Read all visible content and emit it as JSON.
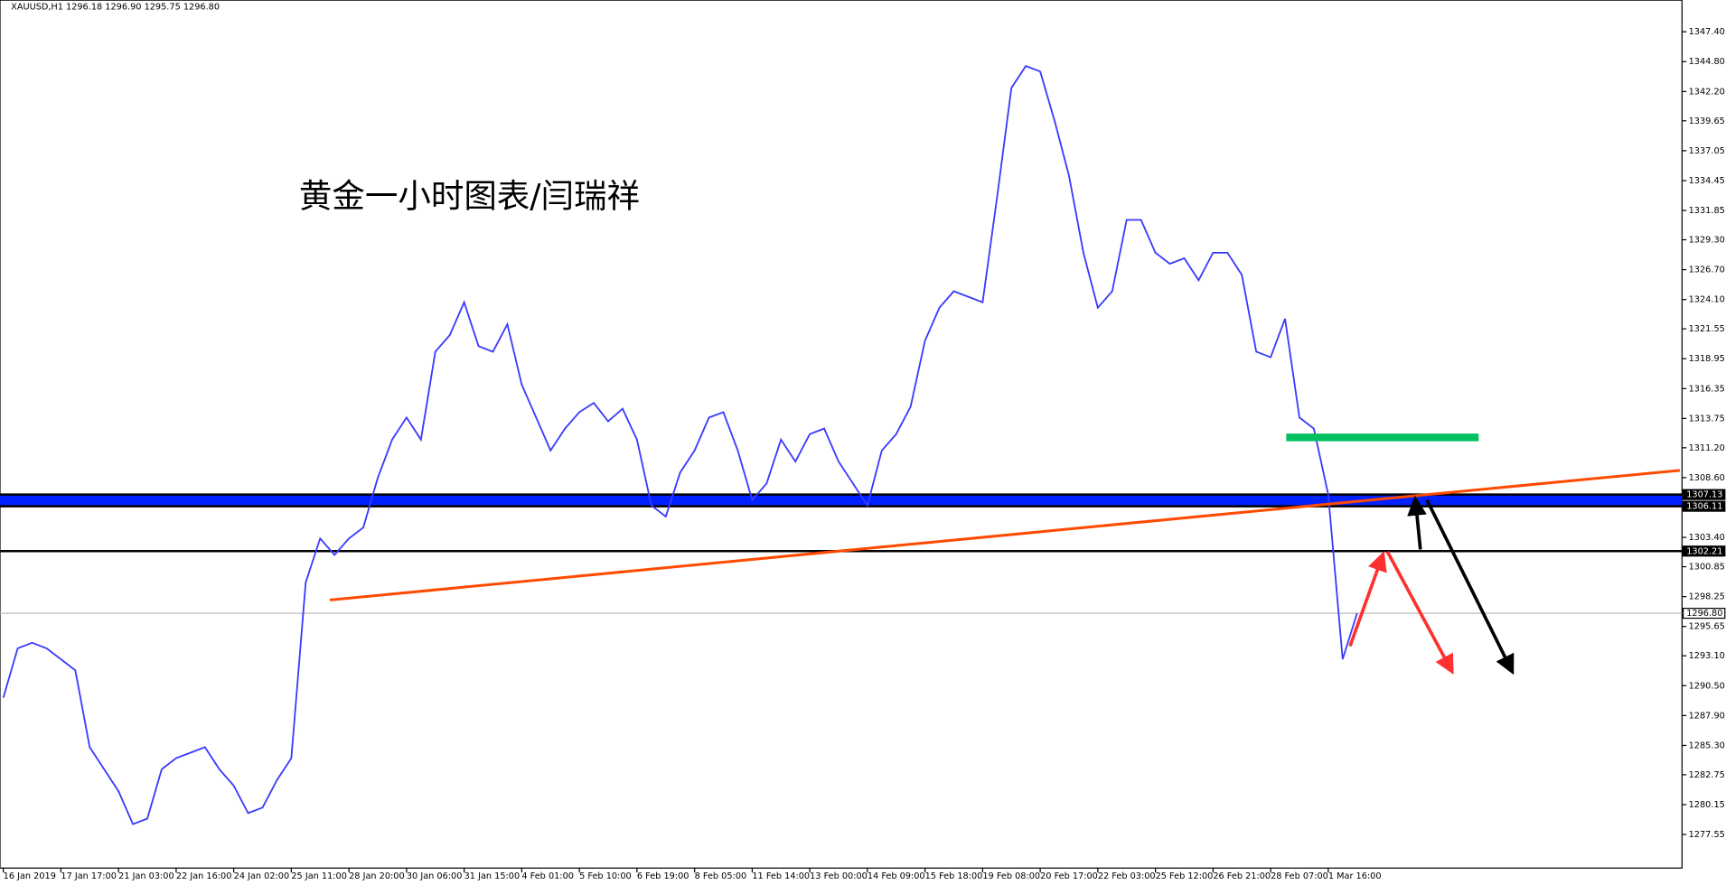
{
  "chart_data": {
    "type": "line",
    "subtitle": "XAUUSD,H1  1296.18 1296.90 1295.75 1296.80",
    "title": "黄金一小时图表/闫瑞祥",
    "categories": [
      "16 Jan 2019",
      null,
      null,
      null,
      "17 Jan 17:00",
      null,
      null,
      null,
      "21 Jan 03:00",
      null,
      null,
      null,
      "22 Jan 16:00",
      null,
      null,
      null,
      "24 Jan 02:00",
      null,
      null,
      null,
      "25 Jan 11:00",
      null,
      null,
      null,
      "28 Jan 20:00",
      null,
      null,
      null,
      "30 Jan 06:00",
      null,
      null,
      null,
      "31 Jan 15:00",
      null,
      null,
      null,
      "4 Feb 01:00",
      null,
      null,
      null,
      "5 Feb 10:00",
      null,
      null,
      null,
      "6 Feb 19:00",
      null,
      null,
      null,
      "8 Feb 05:00",
      null,
      null,
      null,
      "11 Feb 14:00",
      null,
      null,
      null,
      "13 Feb 00:00",
      null,
      null,
      null,
      "14 Feb 09:00",
      null,
      null,
      null,
      "15 Feb 18:00",
      null,
      null,
      null,
      "19 Feb 08:00",
      null,
      null,
      null,
      "20 Feb 17:00",
      null,
      null,
      null,
      "22 Feb 03:00",
      null,
      null,
      null,
      "25 Feb 12:00",
      null,
      null,
      null,
      "26 Feb 21:00",
      null,
      null,
      null,
      "28 Feb 07:00",
      null,
      null,
      null,
      "1 Mar 16:00",
      null,
      null
    ],
    "series": [
      {
        "color": "#3a3aff",
        "values": [
          1289.45,
          1293.75,
          1294.23,
          1293.75,
          1292.8,
          1291.84,
          1285.15,
          1283.23,
          1281.32,
          1278.45,
          1278.93,
          1283.23,
          1284.19,
          1284.67,
          1285.15,
          1283.23,
          1281.8,
          1279.41,
          1279.89,
          1282.28,
          1284.19,
          1299.49,
          1303.31,
          1301.88,
          1303.31,
          1304.27,
          1308.57,
          1311.91,
          1313.83,
          1311.91,
          1319.56,
          1321.0,
          1323.86,
          1320.04,
          1319.56,
          1321.95,
          1316.69,
          1313.83,
          1310.96,
          1312.87,
          1314.3,
          1315.1,
          1313.5,
          1314.6,
          1311.91,
          1306.18,
          1305.22,
          1309.05,
          1310.96,
          1313.83,
          1314.3,
          1310.96,
          1306.66,
          1308.09,
          1311.91,
          1310.0,
          1312.39,
          1312.87,
          1310.0,
          1308.09,
          1306.18,
          1310.96,
          1312.39,
          1314.78,
          1320.52,
          1323.39,
          1324.82,
          1324.34,
          1323.86,
          1332.95,
          1342.51,
          1344.42,
          1343.94,
          1339.64,
          1334.86,
          1328.17,
          1323.39,
          1324.82,
          1331.03,
          1331.03,
          1328.17,
          1327.21,
          1327.69,
          1325.78,
          1328.17,
          1328.17,
          1326.25,
          1319.56,
          1319.08,
          1322.43,
          1313.83,
          1312.87,
          1307.13,
          1292.8,
          1296.8
        ]
      }
    ],
    "ylim": [
      1274.63,
      1350.15
    ],
    "yticks": [
      {
        "value": 1347.4,
        "label": "1347.40"
      },
      {
        "value": 1344.8,
        "label": "1344.80"
      },
      {
        "value": 1342.2,
        "label": "1342.20"
      },
      1339.65,
      1337.05,
      1334.45,
      1331.85,
      {
        "value": 1329.3,
        "label": "1329.30"
      },
      {
        "value": 1326.7,
        "label": "1326.70"
      },
      {
        "value": 1324.1,
        "label": "1324.10"
      },
      1321.55,
      1318.95,
      1316.35,
      1313.75,
      {
        "value": 1311.2,
        "label": "1311.20"
      },
      {
        "value": 1308.6,
        "label": "1308.60"
      },
      {
        "value": 1303.4,
        "label": "1303.40"
      },
      1300.85,
      1298.25,
      1295.65,
      {
        "value": 1293.1,
        "label": "1293.10"
      },
      {
        "value": 1290.5,
        "label": "1290.50"
      },
      {
        "value": 1287.9,
        "label": "1287.90"
      },
      {
        "value": 1285.3,
        "label": "1285.30"
      },
      1282.75,
      1280.15,
      1277.55
    ],
    "levels": [
      1307.13,
      1306.11,
      1302.21,
      {
        "value": 1296.8,
        "label": "1296.80"
      }
    ]
  }
}
